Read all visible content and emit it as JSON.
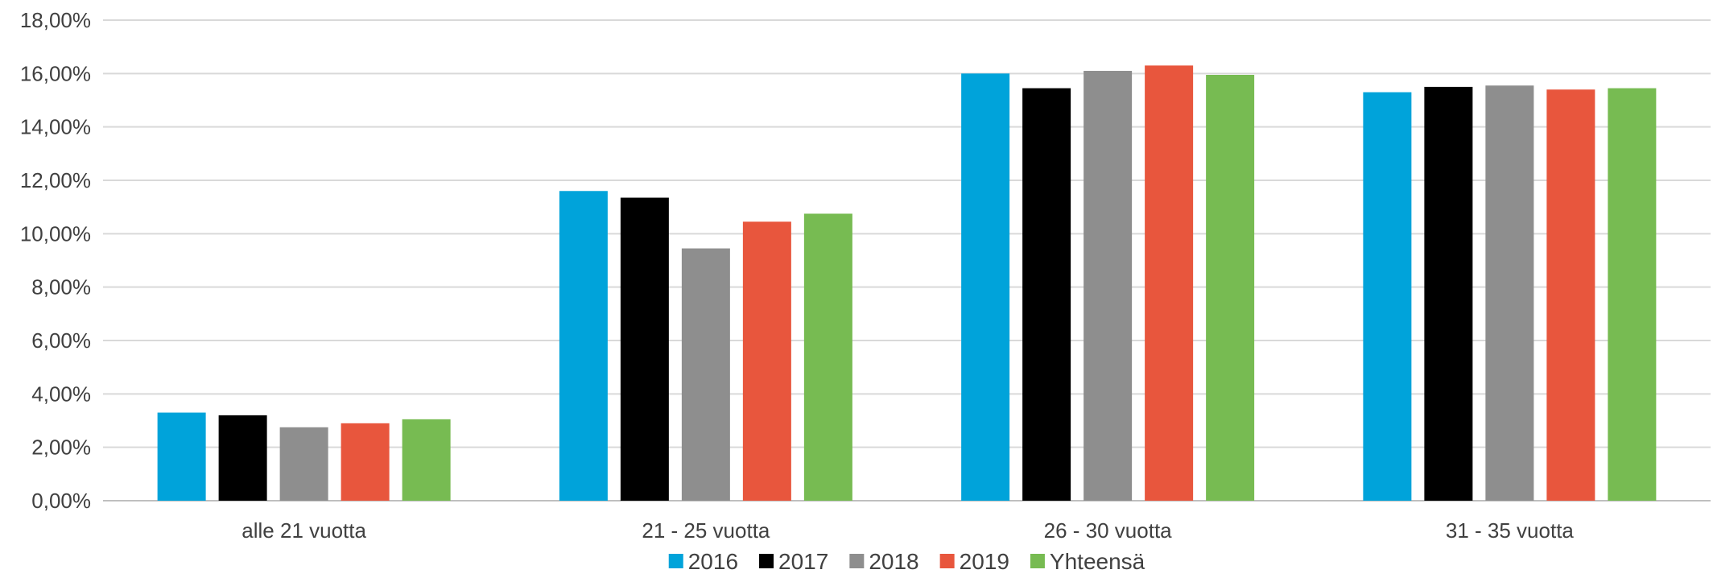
{
  "chart_data": {
    "type": "bar",
    "categories": [
      "alle 21 vuotta",
      "21 - 25 vuotta",
      "26 - 30 vuotta",
      "31 - 35 vuotta"
    ],
    "series": [
      {
        "name": "2016",
        "color": "#00A3DA",
        "values": [
          3.3,
          11.6,
          16.0,
          15.3
        ]
      },
      {
        "name": "2017",
        "color": "#000000",
        "values": [
          3.2,
          11.35,
          15.45,
          15.5
        ]
      },
      {
        "name": "2018",
        "color": "#8E8E8E",
        "values": [
          2.75,
          9.45,
          16.1,
          15.55
        ]
      },
      {
        "name": "2019",
        "color": "#E8563D",
        "values": [
          2.9,
          10.45,
          16.3,
          15.4
        ]
      },
      {
        "name": "Yhteensä",
        "color": "#77BB52",
        "values": [
          3.05,
          10.75,
          15.95,
          15.45
        ]
      }
    ],
    "y_ticks": [
      "0,00%",
      "2,00%",
      "4,00%",
      "6,00%",
      "8,00%",
      "10,00%",
      "12,00%",
      "14,00%",
      "16,00%",
      "18,00%"
    ],
    "ylim": [
      0,
      18
    ],
    "grid": true,
    "legend_position": "bottom-center"
  }
}
